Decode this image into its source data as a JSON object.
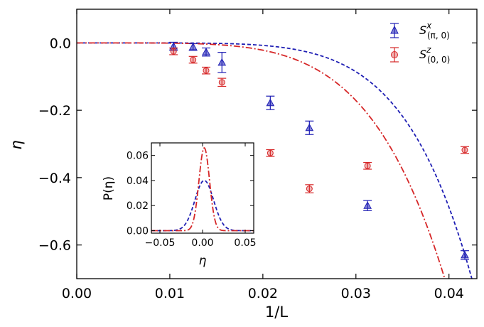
{
  "chart_data": {
    "type": "scatter",
    "xlabel": "1/L",
    "ylabel": "η",
    "xlim": [
      0.0,
      0.043
    ],
    "ylim": [
      -0.7,
      0.1
    ],
    "xticks": [
      0.0,
      0.01,
      0.02,
      0.03,
      0.04
    ],
    "xtick_labels": [
      "0.00",
      "0.01",
      "0.02",
      "0.03",
      "0.04"
    ],
    "yticks": [
      0.0,
      -0.2,
      -0.4,
      -0.6
    ],
    "ytick_labels": [
      "0.0",
      "−0.2",
      "−0.4",
      "−0.6"
    ],
    "series": [
      {
        "name": "S^x_(π,0)",
        "legend_main": "S",
        "legend_sup": "x",
        "legend_sub": "(π, 0)",
        "color": "#1f1fb4",
        "marker": "triangle",
        "x": [
          0.0104,
          0.0125,
          0.0139,
          0.0156,
          0.0208,
          0.025,
          0.03125,
          0.0417
        ],
        "y": [
          -0.01,
          -0.012,
          -0.027,
          -0.058,
          -0.178,
          -0.252,
          -0.483,
          -0.63
        ],
        "err": [
          0.012,
          0.01,
          0.012,
          0.03,
          0.02,
          0.02,
          0.015,
          0.013
        ]
      },
      {
        "name": "S^z_(0,0)",
        "legend_main": "S",
        "legend_sup": "z",
        "legend_sub": "(0, 0)",
        "color": "#d62728",
        "marker": "circle",
        "x": [
          0.0104,
          0.0125,
          0.0139,
          0.0156,
          0.0208,
          0.025,
          0.03125,
          0.0417
        ],
        "y": [
          -0.025,
          -0.05,
          -0.082,
          -0.117,
          -0.327,
          -0.433,
          -0.365,
          -0.318
        ],
        "err": [
          0.01,
          0.01,
          0.01,
          0.012,
          0.01,
          0.012,
          0.01,
          0.01
        ]
      }
    ],
    "fits": [
      {
        "series": "S^x_(π,0)",
        "style": "dashed",
        "color": "#1f1fb4",
        "form": "y = -a * x^p",
        "a": 140000000,
        "p": 6.05
      },
      {
        "series": "S^z_(0,0)",
        "style": "dashdot",
        "color": "#d62728",
        "form": "y = -a * x^p",
        "a": 10000000,
        "p": 5.1
      }
    ],
    "inset": {
      "type": "line",
      "xlabel": "η",
      "ylabel": "P(η)",
      "xlim": [
        -0.06,
        0.06
      ],
      "ylim": [
        -0.002,
        0.07
      ],
      "xticks": [
        -0.05,
        0.0,
        0.05
      ],
      "xtick_labels": [
        "−0.05",
        "0.00",
        "0.05"
      ],
      "yticks": [
        0.0,
        0.02,
        0.04,
        0.06
      ],
      "ytick_labels": [
        "0.00",
        "0.02",
        "0.04",
        "0.06"
      ],
      "curves": [
        {
          "name": "S^x_(π,0)",
          "color": "#1f1fb4",
          "style": "dashed",
          "peak": 0.04,
          "mean": 0.002,
          "sigma": 0.011
        },
        {
          "name": "S^z_(0,0)",
          "color": "#d62728",
          "style": "dashdot",
          "peak": 0.066,
          "mean": 0.002,
          "sigma": 0.0062
        }
      ]
    }
  }
}
